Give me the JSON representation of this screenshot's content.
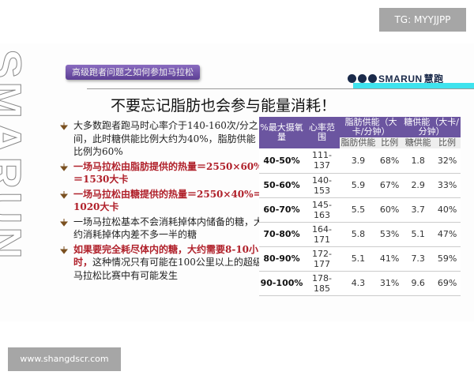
{
  "watermarks": {
    "top": "TG: MYYJJPP",
    "bottom": "www.shangdscr.com"
  },
  "side_logo_text": "SMARUN",
  "banner": "高级跑者问题之如何参加马拉松",
  "logo": {
    "text": "SMARUN",
    "cn": "慧跑"
  },
  "title": "不要忘记脂肪也会参与能量消耗！",
  "bullets": [
    {
      "segments": [
        {
          "t": "大多数跑者跑马时心率介于140-160次/分之间，此时糖供能比例大约为40%，脂肪供能比例为60%",
          "red": false
        }
      ]
    },
    {
      "segments": [
        {
          "t": "一场马拉松由脂肪提供的热量＝2550×60%＝1530大卡",
          "red": true
        }
      ]
    },
    {
      "segments": [
        {
          "t": "一场马拉松由糖提供的热量＝2550×40%＝1020大卡",
          "red": true
        }
      ]
    },
    {
      "segments": [
        {
          "t": "一场马拉松基本不会消耗掉体内储备的糖，大约消耗掉体内差不多一半的糖",
          "red": false
        }
      ]
    },
    {
      "segments": [
        {
          "t": "如果要完全耗尽体内的糖，大约需要8-10小时，",
          "red": true
        },
        {
          "t": "这种情况只有可能在100公里以上的超级马拉松比赛中有可能发生",
          "red": false
        }
      ]
    }
  ],
  "table": {
    "headers": {
      "vo2": "%最大摄氧量",
      "hr": "心率范围",
      "fat": "脂肪供能（大卡/分钟）",
      "sugar": "糖供能（大卡/分钟）",
      "fat_energy": "脂肪供能",
      "fat_ratio": "比例",
      "sugar_energy": "糖供能",
      "sugar_ratio": "比例"
    },
    "rows": [
      [
        "40-50%",
        "111-137",
        "3.9",
        "68%",
        "1.8",
        "32%"
      ],
      [
        "50-60%",
        "140-153",
        "5.9",
        "67%",
        "2.9",
        "33%"
      ],
      [
        "60-70%",
        "145-163",
        "5.5",
        "60%",
        "3.7",
        "40%"
      ],
      [
        "70-80%",
        "164-171",
        "5.8",
        "53%",
        "5.1",
        "47%"
      ],
      [
        "80-90%",
        "172-177",
        "5.1",
        "41%",
        "7.3",
        "59%"
      ],
      [
        "90-100%",
        "178-185",
        "4.3",
        "31%",
        "9.6",
        "69%"
      ]
    ]
  },
  "colors": {
    "header": "#6b55a0",
    "red": "#b0202a",
    "cyan": "#3fe3ee"
  }
}
